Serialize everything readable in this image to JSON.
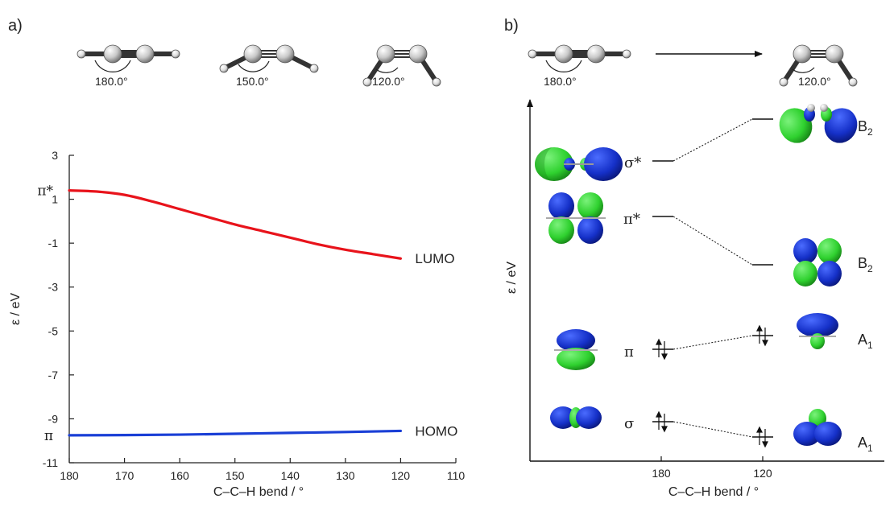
{
  "panels": {
    "a": {
      "label": "a)"
    },
    "b": {
      "label": "b)"
    }
  },
  "molecules": {
    "a": [
      {
        "angle_label": "180.0°",
        "bend_deg": 180
      },
      {
        "angle_label": "150.0°",
        "bend_deg": 150
      },
      {
        "angle_label": "120.0°",
        "bend_deg": 120
      }
    ],
    "b": [
      {
        "angle_label": "180.0°",
        "bend_deg": 180
      },
      {
        "angle_label": "120.0°",
        "bend_deg": 120
      }
    ]
  },
  "chart_data": {
    "type": "line",
    "title": "",
    "xlabel": "C–C–H bend / °",
    "ylabel": "ε / eV",
    "xlim": [
      180,
      110
    ],
    "ylim": [
      -11,
      3
    ],
    "x_ticks": [
      "180",
      "170",
      "160",
      "150",
      "140",
      "130",
      "120",
      "110"
    ],
    "y_ticks": [
      "3",
      "1",
      "-1",
      "-3",
      "-5",
      "-7",
      "-9",
      "-11"
    ],
    "x_tick_values": [
      180,
      170,
      160,
      150,
      140,
      130,
      120,
      110
    ],
    "y_tick_values": [
      3,
      1,
      -1,
      -3,
      -5,
      -7,
      -9,
      -11
    ],
    "series": [
      {
        "name": "LUMO",
        "color": "#e8131b",
        "x": [
          180,
          175,
          170,
          165,
          160,
          155,
          150,
          145,
          140,
          135,
          130,
          125,
          120
        ],
        "y": [
          1.4,
          1.35,
          1.2,
          0.9,
          0.55,
          0.2,
          -0.15,
          -0.45,
          -0.75,
          -1.05,
          -1.3,
          -1.5,
          -1.7
        ],
        "start_label": "π*",
        "end_label": "LUMO"
      },
      {
        "name": "HOMO",
        "color": "#1a3fd6",
        "x": [
          180,
          170,
          160,
          150,
          140,
          130,
          120
        ],
        "y": [
          -9.75,
          -9.74,
          -9.72,
          -9.68,
          -9.64,
          -9.6,
          -9.55
        ],
        "start_label": "π",
        "end_label": "HOMO"
      }
    ]
  },
  "orbital_diagram": {
    "ylabel": "ε / eV",
    "xlabel": "C–C–H bend / °",
    "x_ticks": [
      "180",
      "120"
    ],
    "left_levels": [
      {
        "id": "sigma-star",
        "label": "σ*",
        "electrons": 0
      },
      {
        "id": "pi-star",
        "label": "π*",
        "electrons": 0
      },
      {
        "id": "pi",
        "label": "π",
        "electrons": 2
      },
      {
        "id": "sigma",
        "label": "σ",
        "electrons": 2
      }
    ],
    "right_levels": [
      {
        "id": "b2-upper",
        "label": "B",
        "sub": "2",
        "electrons": 0
      },
      {
        "id": "b2-lower",
        "label": "B",
        "sub": "2",
        "electrons": 0
      },
      {
        "id": "a1-upper",
        "label": "A",
        "sub": "1",
        "electrons": 2
      },
      {
        "id": "a1-lower",
        "label": "A",
        "sub": "1",
        "electrons": 2
      }
    ],
    "correlations": [
      [
        "sigma-star",
        "b2-upper"
      ],
      [
        "pi-star",
        "b2-lower"
      ],
      [
        "pi",
        "a1-upper"
      ],
      [
        "sigma",
        "a1-lower"
      ]
    ],
    "lobe_colors": {
      "positive": "#1530c8",
      "negative": "#2fd12f"
    }
  }
}
